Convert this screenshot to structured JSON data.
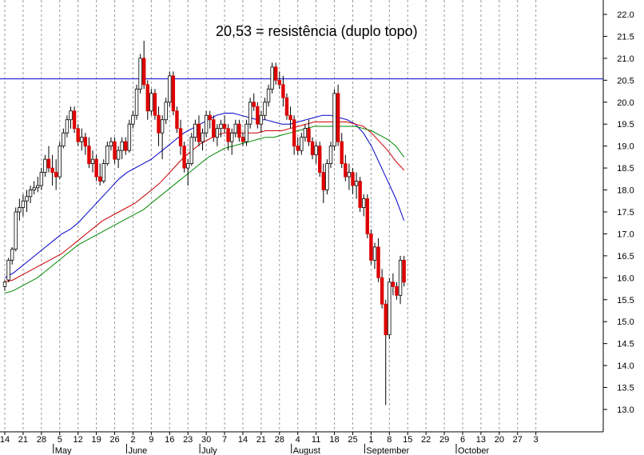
{
  "chart_data": {
    "type": "candlestick",
    "annotation": "20,53 = resistência (duplo topo)",
    "resistance": 20.53,
    "ylim": [
      12.5,
      22.2
    ],
    "y_ticks": [
      13.0,
      13.5,
      14.0,
      14.5,
      15.0,
      15.5,
      16.0,
      16.5,
      17.0,
      17.5,
      18.0,
      18.5,
      19.0,
      19.5,
      20.0,
      20.5,
      21.0,
      21.5,
      22.0
    ],
    "y_tick_labels": [
      "13.0",
      "13.5",
      "14.0",
      "14.5",
      "15.0",
      "15.5",
      "16.0",
      "16.5",
      "17.0",
      "17.5",
      "18.0",
      "18.5",
      "19.0",
      "19.5",
      "20.0",
      "20.5",
      "21.0",
      "21.5",
      "22.0"
    ],
    "x_tick_labels": [
      "14",
      "21",
      "28",
      "5",
      "12",
      "19",
      "26",
      "2",
      "9",
      "16",
      "23",
      "30",
      "7",
      "14",
      "21",
      "28",
      "4",
      "11",
      "18",
      "25",
      "1",
      "8",
      "15",
      "22",
      "29",
      "6",
      "13",
      "20",
      "27",
      "3"
    ],
    "months": [
      {
        "label": "May",
        "week_index": 3
      },
      {
        "label": "June",
        "week_index": 7
      },
      {
        "label": "July",
        "week_index": 11
      },
      {
        "label": "August",
        "week_index": 16
      },
      {
        "label": "September",
        "week_index": 20
      },
      {
        "label": "October",
        "week_index": 25
      }
    ],
    "candles": [
      [
        15.8,
        15.95,
        15.7,
        15.9
      ],
      [
        15.95,
        16.45,
        15.9,
        16.4
      ],
      [
        16.4,
        16.7,
        16.3,
        16.65
      ],
      [
        16.65,
        17.6,
        16.6,
        17.5
      ],
      [
        17.5,
        17.8,
        17.3,
        17.6
      ],
      [
        17.6,
        17.9,
        17.4,
        17.75
      ],
      [
        17.75,
        18.0,
        17.5,
        17.85
      ],
      [
        17.85,
        18.1,
        17.7,
        18.0
      ],
      [
        18.0,
        18.2,
        17.9,
        18.05
      ],
      [
        18.05,
        18.3,
        17.95,
        18.1
      ],
      [
        18.1,
        18.5,
        18.0,
        18.4
      ],
      [
        18.4,
        18.8,
        18.3,
        18.7
      ],
      [
        18.7,
        19.0,
        18.4,
        18.5
      ],
      [
        18.5,
        18.8,
        18.1,
        18.4
      ],
      [
        18.4,
        18.7,
        18.0,
        18.3
      ],
      [
        18.3,
        19.1,
        18.25,
        19.0
      ],
      [
        19.0,
        19.4,
        18.95,
        19.3
      ],
      [
        19.3,
        19.7,
        19.2,
        19.6
      ],
      [
        19.6,
        19.9,
        19.4,
        19.8
      ],
      [
        19.8,
        19.9,
        19.3,
        19.4
      ],
      [
        19.4,
        19.5,
        19.0,
        19.1
      ],
      [
        19.1,
        19.4,
        18.9,
        19.2
      ],
      [
        19.2,
        19.3,
        18.8,
        19.0
      ],
      [
        19.0,
        19.2,
        18.5,
        18.6
      ],
      [
        18.6,
        18.9,
        18.4,
        18.7
      ],
      [
        18.7,
        18.8,
        18.2,
        18.3
      ],
      [
        18.3,
        18.6,
        18.1,
        18.2
      ],
      [
        18.2,
        18.7,
        18.15,
        18.6
      ],
      [
        18.6,
        19.1,
        18.55,
        19.0
      ],
      [
        19.0,
        19.2,
        18.9,
        19.1
      ],
      [
        19.1,
        19.2,
        18.6,
        18.7
      ],
      [
        18.7,
        19.0,
        18.5,
        18.9
      ],
      [
        18.9,
        19.2,
        18.7,
        19.1
      ],
      [
        19.1,
        19.2,
        18.8,
        18.9
      ],
      [
        18.9,
        19.6,
        18.85,
        19.5
      ],
      [
        19.5,
        19.8,
        19.4,
        19.7
      ],
      [
        19.7,
        20.4,
        19.6,
        20.3
      ],
      [
        20.3,
        21.1,
        20.2,
        21.0
      ],
      [
        21.0,
        21.4,
        20.3,
        20.4
      ],
      [
        20.4,
        20.5,
        19.6,
        19.8
      ],
      [
        19.8,
        20.3,
        19.7,
        20.2
      ],
      [
        20.2,
        20.3,
        19.6,
        19.7
      ],
      [
        19.7,
        19.9,
        19.0,
        19.3
      ],
      [
        19.3,
        19.7,
        18.7,
        19.6
      ],
      [
        19.6,
        20.1,
        19.5,
        20.0
      ],
      [
        20.0,
        20.7,
        19.9,
        20.6
      ],
      [
        20.6,
        20.7,
        19.7,
        19.8
      ],
      [
        19.8,
        19.9,
        19.3,
        19.4
      ],
      [
        19.4,
        19.6,
        18.8,
        19.0
      ],
      [
        19.0,
        19.1,
        18.4,
        18.5
      ],
      [
        18.5,
        18.7,
        18.1,
        18.6
      ],
      [
        18.6,
        19.3,
        18.55,
        19.2
      ],
      [
        19.2,
        19.6,
        19.1,
        19.5
      ],
      [
        19.5,
        19.7,
        19.0,
        19.1
      ],
      [
        19.1,
        19.4,
        18.9,
        19.3
      ],
      [
        19.3,
        19.8,
        19.2,
        19.7
      ],
      [
        19.7,
        19.8,
        19.4,
        19.6
      ],
      [
        19.6,
        19.7,
        19.1,
        19.2
      ],
      [
        19.2,
        19.5,
        19.0,
        19.4
      ],
      [
        19.4,
        19.6,
        19.2,
        19.5
      ],
      [
        19.5,
        19.7,
        19.3,
        19.4
      ],
      [
        19.4,
        19.5,
        18.9,
        19.1
      ],
      [
        19.1,
        19.4,
        18.8,
        19.3
      ],
      [
        19.3,
        19.6,
        19.2,
        19.5
      ],
      [
        19.5,
        19.6,
        19.1,
        19.2
      ],
      [
        19.2,
        19.3,
        19.0,
        19.1
      ],
      [
        19.1,
        19.6,
        19.0,
        19.5
      ],
      [
        19.5,
        20.1,
        19.4,
        20.0
      ],
      [
        20.0,
        20.2,
        19.8,
        19.9
      ],
      [
        19.9,
        20.0,
        19.4,
        19.5
      ],
      [
        19.5,
        19.8,
        19.3,
        19.7
      ],
      [
        19.7,
        20.1,
        19.6,
        20.0
      ],
      [
        20.0,
        20.4,
        19.9,
        20.3
      ],
      [
        20.3,
        20.9,
        20.2,
        20.8
      ],
      [
        20.8,
        20.9,
        20.4,
        20.5
      ],
      [
        20.5,
        20.7,
        20.3,
        20.4
      ],
      [
        20.4,
        20.6,
        19.9,
        20.1
      ],
      [
        20.1,
        20.2,
        19.6,
        19.7
      ],
      [
        19.7,
        19.9,
        19.4,
        19.6
      ],
      [
        19.6,
        19.7,
        18.8,
        19.0
      ],
      [
        19.0,
        19.2,
        18.8,
        18.9
      ],
      [
        18.9,
        19.3,
        18.8,
        19.2
      ],
      [
        19.2,
        19.5,
        19.1,
        19.4
      ],
      [
        19.4,
        19.6,
        19.0,
        19.1
      ],
      [
        19.1,
        19.2,
        18.7,
        18.8
      ],
      [
        18.8,
        19.1,
        18.6,
        19.0
      ],
      [
        19.0,
        19.1,
        18.3,
        18.4
      ],
      [
        18.4,
        18.6,
        17.7,
        18.0
      ],
      [
        18.0,
        18.7,
        17.9,
        18.6
      ],
      [
        18.6,
        19.1,
        18.5,
        19.0
      ],
      [
        19.0,
        20.3,
        18.9,
        20.2
      ],
      [
        20.2,
        20.4,
        19.0,
        19.1
      ],
      [
        19.1,
        19.3,
        18.5,
        18.6
      ],
      [
        18.6,
        18.8,
        18.2,
        18.3
      ],
      [
        18.3,
        18.6,
        18.0,
        18.4
      ],
      [
        18.4,
        18.5,
        17.9,
        18.1
      ],
      [
        18.1,
        18.4,
        17.8,
        18.2
      ],
      [
        18.2,
        18.3,
        17.5,
        17.6
      ],
      [
        17.6,
        17.9,
        17.4,
        17.8
      ],
      [
        17.8,
        17.9,
        16.9,
        17.0
      ],
      [
        17.0,
        17.1,
        16.3,
        16.4
      ],
      [
        16.4,
        16.8,
        16.2,
        16.7
      ],
      [
        16.7,
        16.9,
        15.9,
        16.0
      ],
      [
        16.0,
        16.2,
        15.3,
        15.4
      ],
      [
        15.4,
        15.5,
        13.1,
        14.7
      ],
      [
        14.7,
        16.0,
        14.6,
        15.9
      ],
      [
        15.9,
        16.1,
        15.6,
        15.8
      ],
      [
        15.8,
        15.9,
        15.5,
        15.6
      ],
      [
        15.6,
        16.5,
        15.4,
        16.4
      ],
      [
        16.4,
        16.5,
        15.8,
        15.9
      ]
    ],
    "ma_series": [
      {
        "color": "#0000cc",
        "values": [
          16.0,
          16.1,
          16.25,
          16.4,
          16.55,
          16.7,
          16.85,
          17.0,
          17.1,
          17.25,
          17.45,
          17.65,
          17.85,
          18.05,
          18.25,
          18.4,
          18.5,
          18.6,
          18.7,
          18.85,
          19.0,
          19.15,
          19.3,
          19.4,
          19.5,
          19.6,
          19.7,
          19.75,
          19.75,
          19.7,
          19.65,
          19.6,
          19.6,
          19.55,
          19.5,
          19.5,
          19.55,
          19.6,
          19.65,
          19.7,
          19.7,
          19.65,
          19.6,
          19.5,
          19.3,
          19.0,
          18.6,
          18.2,
          17.8,
          17.3
        ]
      },
      {
        "color": "#cc0000",
        "values": [
          15.9,
          15.95,
          16.05,
          16.15,
          16.25,
          16.35,
          16.45,
          16.55,
          16.7,
          16.85,
          17.0,
          17.15,
          17.3,
          17.4,
          17.5,
          17.6,
          17.7,
          17.85,
          18.0,
          18.15,
          18.35,
          18.55,
          18.75,
          18.9,
          19.05,
          19.15,
          19.25,
          19.3,
          19.3,
          19.3,
          19.3,
          19.3,
          19.35,
          19.35,
          19.35,
          19.4,
          19.45,
          19.5,
          19.55,
          19.55,
          19.55,
          19.55,
          19.55,
          19.5,
          19.45,
          19.3,
          19.1,
          18.9,
          18.65,
          18.45
        ]
      },
      {
        "color": "#008800",
        "values": [
          15.65,
          15.7,
          15.8,
          15.9,
          16.0,
          16.15,
          16.3,
          16.45,
          16.6,
          16.75,
          16.85,
          16.95,
          17.05,
          17.15,
          17.25,
          17.35,
          17.45,
          17.55,
          17.7,
          17.85,
          18.0,
          18.15,
          18.3,
          18.45,
          18.6,
          18.75,
          18.85,
          18.95,
          19.0,
          19.05,
          19.1,
          19.15,
          19.2,
          19.2,
          19.25,
          19.3,
          19.35,
          19.4,
          19.45,
          19.45,
          19.45,
          19.45,
          19.45,
          19.45,
          19.4,
          19.35,
          19.25,
          19.15,
          19.0,
          18.75
        ]
      }
    ],
    "grid": true,
    "colors": {
      "up": "#ffffff",
      "down": "#dd0000",
      "wick": "#000000",
      "resistance": "#0000cc",
      "grid": "#999999"
    }
  }
}
